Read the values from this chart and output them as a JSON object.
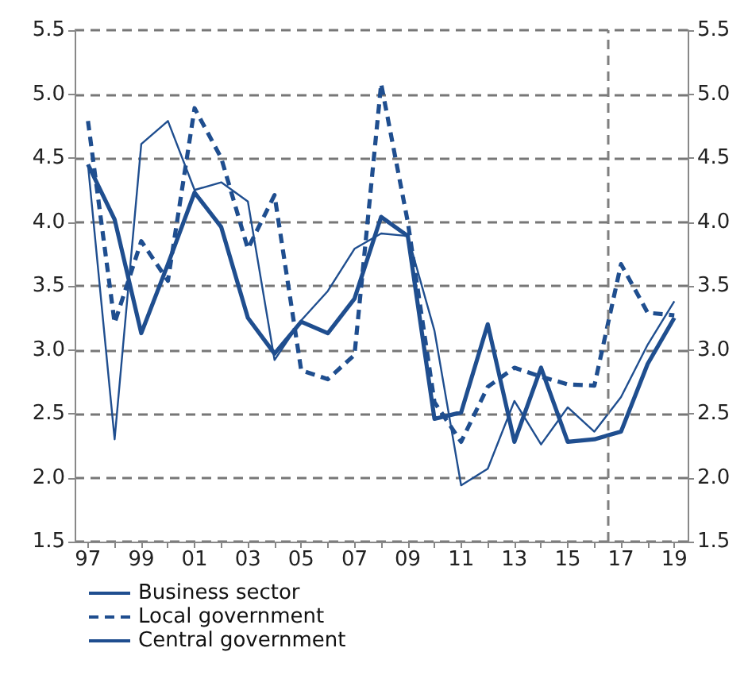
{
  "chart_data": {
    "type": "line",
    "x": [
      1997,
      1998,
      1999,
      2000,
      2001,
      2002,
      2003,
      2004,
      2005,
      2006,
      2007,
      2008,
      2009,
      2010,
      2011,
      2012,
      2013,
      2014,
      2015,
      2016,
      2017,
      2018,
      2019
    ],
    "series": [
      {
        "name": "Business sector",
        "color": "#1f4e8f",
        "line_style": "solid",
        "values": [
          4.45,
          4.02,
          3.13,
          3.67,
          4.23,
          3.96,
          3.25,
          2.97,
          3.22,
          3.13,
          3.4,
          4.04,
          3.89,
          2.46,
          2.51,
          3.2,
          2.28,
          2.86,
          2.28,
          2.3,
          2.36,
          2.89,
          3.25
        ]
      },
      {
        "name": "Local government",
        "color": "#1f4e8f",
        "line_style": "dashed",
        "values": [
          4.79,
          3.21,
          3.85,
          3.54,
          4.89,
          4.5,
          3.79,
          4.21,
          2.84,
          2.77,
          2.96,
          5.08,
          4.0,
          2.59,
          2.28,
          2.71,
          2.86,
          2.79,
          2.73,
          2.72,
          3.67,
          3.29,
          3.27
        ]
      },
      {
        "name": "Central government",
        "color": "#1f4e8f",
        "line_style": "solid",
        "values": [
          4.45,
          2.3,
          4.61,
          4.79,
          4.25,
          4.31,
          4.16,
          2.92,
          3.23,
          3.46,
          3.79,
          3.91,
          3.89,
          3.15,
          1.94,
          2.07,
          2.6,
          2.26,
          2.55,
          2.36,
          2.63,
          3.04,
          3.38
        ]
      }
    ],
    "xlim": [
      1996.5,
      2019.5
    ],
    "xticks": [
      {
        "value": 1997,
        "label": "97"
      },
      {
        "value": 1998,
        "label": null
      },
      {
        "value": 1999,
        "label": "99"
      },
      {
        "value": 2000,
        "label": null
      },
      {
        "value": 2001,
        "label": "01"
      },
      {
        "value": 2002,
        "label": null
      },
      {
        "value": 2003,
        "label": "03"
      },
      {
        "value": 2004,
        "label": null
      },
      {
        "value": 2005,
        "label": "05"
      },
      {
        "value": 2006,
        "label": null
      },
      {
        "value": 2007,
        "label": "07"
      },
      {
        "value": 2008,
        "label": null
      },
      {
        "value": 2009,
        "label": "09"
      },
      {
        "value": 2010,
        "label": null
      },
      {
        "value": 2011,
        "label": "11"
      },
      {
        "value": 2012,
        "label": null
      },
      {
        "value": 2013,
        "label": "13"
      },
      {
        "value": 2014,
        "label": null
      },
      {
        "value": 2015,
        "label": "15"
      },
      {
        "value": 2016,
        "label": null
      },
      {
        "value": 2017,
        "label": "17"
      },
      {
        "value": 2018,
        "label": null
      },
      {
        "value": 2019,
        "label": "19"
      }
    ],
    "ylim": [
      1.5,
      5.5
    ],
    "yticks": [
      1.5,
      {
        "value": 2,
        "label": "2.0"
      },
      2.5,
      {
        "value": 3,
        "label": "3.0"
      },
      3.5,
      {
        "value": 4,
        "label": "4.0"
      },
      4.5,
      {
        "value": 5,
        "label": "5.0"
      },
      5.5
    ],
    "y2lim": [
      1.5,
      5.5
    ],
    "y2ticks": [
      1.5,
      {
        "value": 2,
        "label": "2.0"
      },
      2.5,
      {
        "value": 3,
        "label": "3.0"
      },
      3.5,
      {
        "value": 4,
        "label": "4.0"
      },
      4.5,
      {
        "value": 5,
        "label": "5.0"
      },
      5.5
    ],
    "ref_lines": [
      {
        "axis": "x",
        "value": 2016.5,
        "color": "#7f7f7f",
        "line_style": "dashed"
      }
    ],
    "grid": "y",
    "legend": "bottom left",
    "marker": "none"
  }
}
